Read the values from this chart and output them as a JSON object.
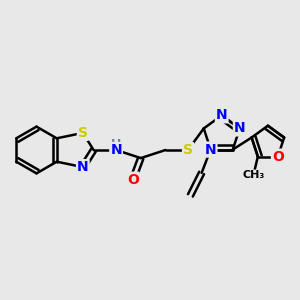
{
  "bg_color": "#e8e8e8",
  "bond_color": "#000000",
  "bond_width": 1.8,
  "atom_colors": {
    "S": "#cccc00",
    "N": "#0000ff",
    "O": "#ff0000",
    "C": "#000000",
    "H": "#708090"
  },
  "font_size_atom": 10,
  "double_sep": 0.06
}
